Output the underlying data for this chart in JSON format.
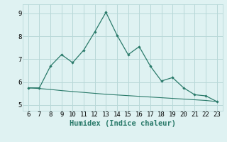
{
  "xlabel": "Humidex (Indice chaleur)",
  "x_values": [
    6,
    7,
    8,
    9,
    10,
    11,
    12,
    13,
    14,
    15,
    16,
    17,
    18,
    19,
    20,
    21,
    22,
    23
  ],
  "line1_y": [
    5.75,
    5.75,
    6.7,
    7.2,
    6.85,
    7.4,
    8.2,
    9.05,
    8.05,
    7.2,
    7.55,
    6.7,
    6.05,
    6.2,
    5.75,
    5.45,
    5.4,
    5.15
  ],
  "line2_y": [
    5.75,
    5.72,
    5.68,
    5.63,
    5.59,
    5.55,
    5.51,
    5.47,
    5.44,
    5.41,
    5.38,
    5.35,
    5.32,
    5.29,
    5.26,
    5.23,
    5.2,
    5.15
  ],
  "line_color": "#2a7a6a",
  "bg_color": "#dff2f2",
  "grid_color": "#b8d8d8",
  "ylim": [
    4.75,
    9.4
  ],
  "yticks": [
    5,
    6,
    7,
    8,
    9
  ],
  "xlim": [
    5.5,
    23.5
  ]
}
